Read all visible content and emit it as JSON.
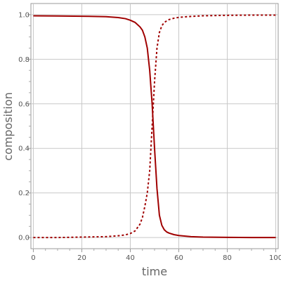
{
  "chart_data": {
    "type": "line",
    "xlabel": "time",
    "ylabel": "composition",
    "xlim": [
      -1,
      101
    ],
    "ylim": [
      -0.05,
      1.05
    ],
    "x_ticks": [
      0,
      20,
      40,
      60,
      80,
      100
    ],
    "y_ticks": [
      0.0,
      0.2,
      0.4,
      0.6,
      0.8,
      1.0
    ],
    "x_tick_labels": [
      "0",
      "20",
      "40",
      "60",
      "80",
      "100"
    ],
    "y_tick_labels": [
      "0.0",
      "0.2",
      "0.4",
      "0.6",
      "0.8",
      "1.0"
    ],
    "grid": true,
    "series": [
      {
        "line_style": "solid",
        "color": "#a00000",
        "x": [
          0,
          10,
          20,
          30,
          35,
          38,
          40,
          42,
          44,
          45,
          46,
          47,
          48,
          49,
          50,
          51,
          52,
          53,
          54,
          55,
          56,
          58,
          60,
          65,
          70,
          80,
          90,
          100
        ],
        "y": [
          0.995,
          0.994,
          0.993,
          0.991,
          0.987,
          0.982,
          0.975,
          0.965,
          0.945,
          0.93,
          0.9,
          0.85,
          0.75,
          0.6,
          0.4,
          0.22,
          0.1,
          0.055,
          0.035,
          0.025,
          0.02,
          0.013,
          0.009,
          0.004,
          0.002,
          0.001,
          0.0,
          0.0
        ]
      },
      {
        "line_style": "dashed",
        "color": "#a00000",
        "x": [
          0,
          10,
          20,
          30,
          35,
          38,
          40,
          42,
          44,
          45,
          46,
          47,
          48,
          49,
          50,
          51,
          52,
          53,
          54,
          55,
          56,
          58,
          60,
          65,
          70,
          80,
          90,
          100
        ],
        "y": [
          0.0,
          0.0,
          0.002,
          0.004,
          0.008,
          0.012,
          0.018,
          0.03,
          0.06,
          0.09,
          0.14,
          0.2,
          0.3,
          0.5,
          0.7,
          0.85,
          0.92,
          0.95,
          0.965,
          0.972,
          0.978,
          0.984,
          0.988,
          0.992,
          0.995,
          0.997,
          0.998,
          0.998
        ]
      }
    ]
  }
}
